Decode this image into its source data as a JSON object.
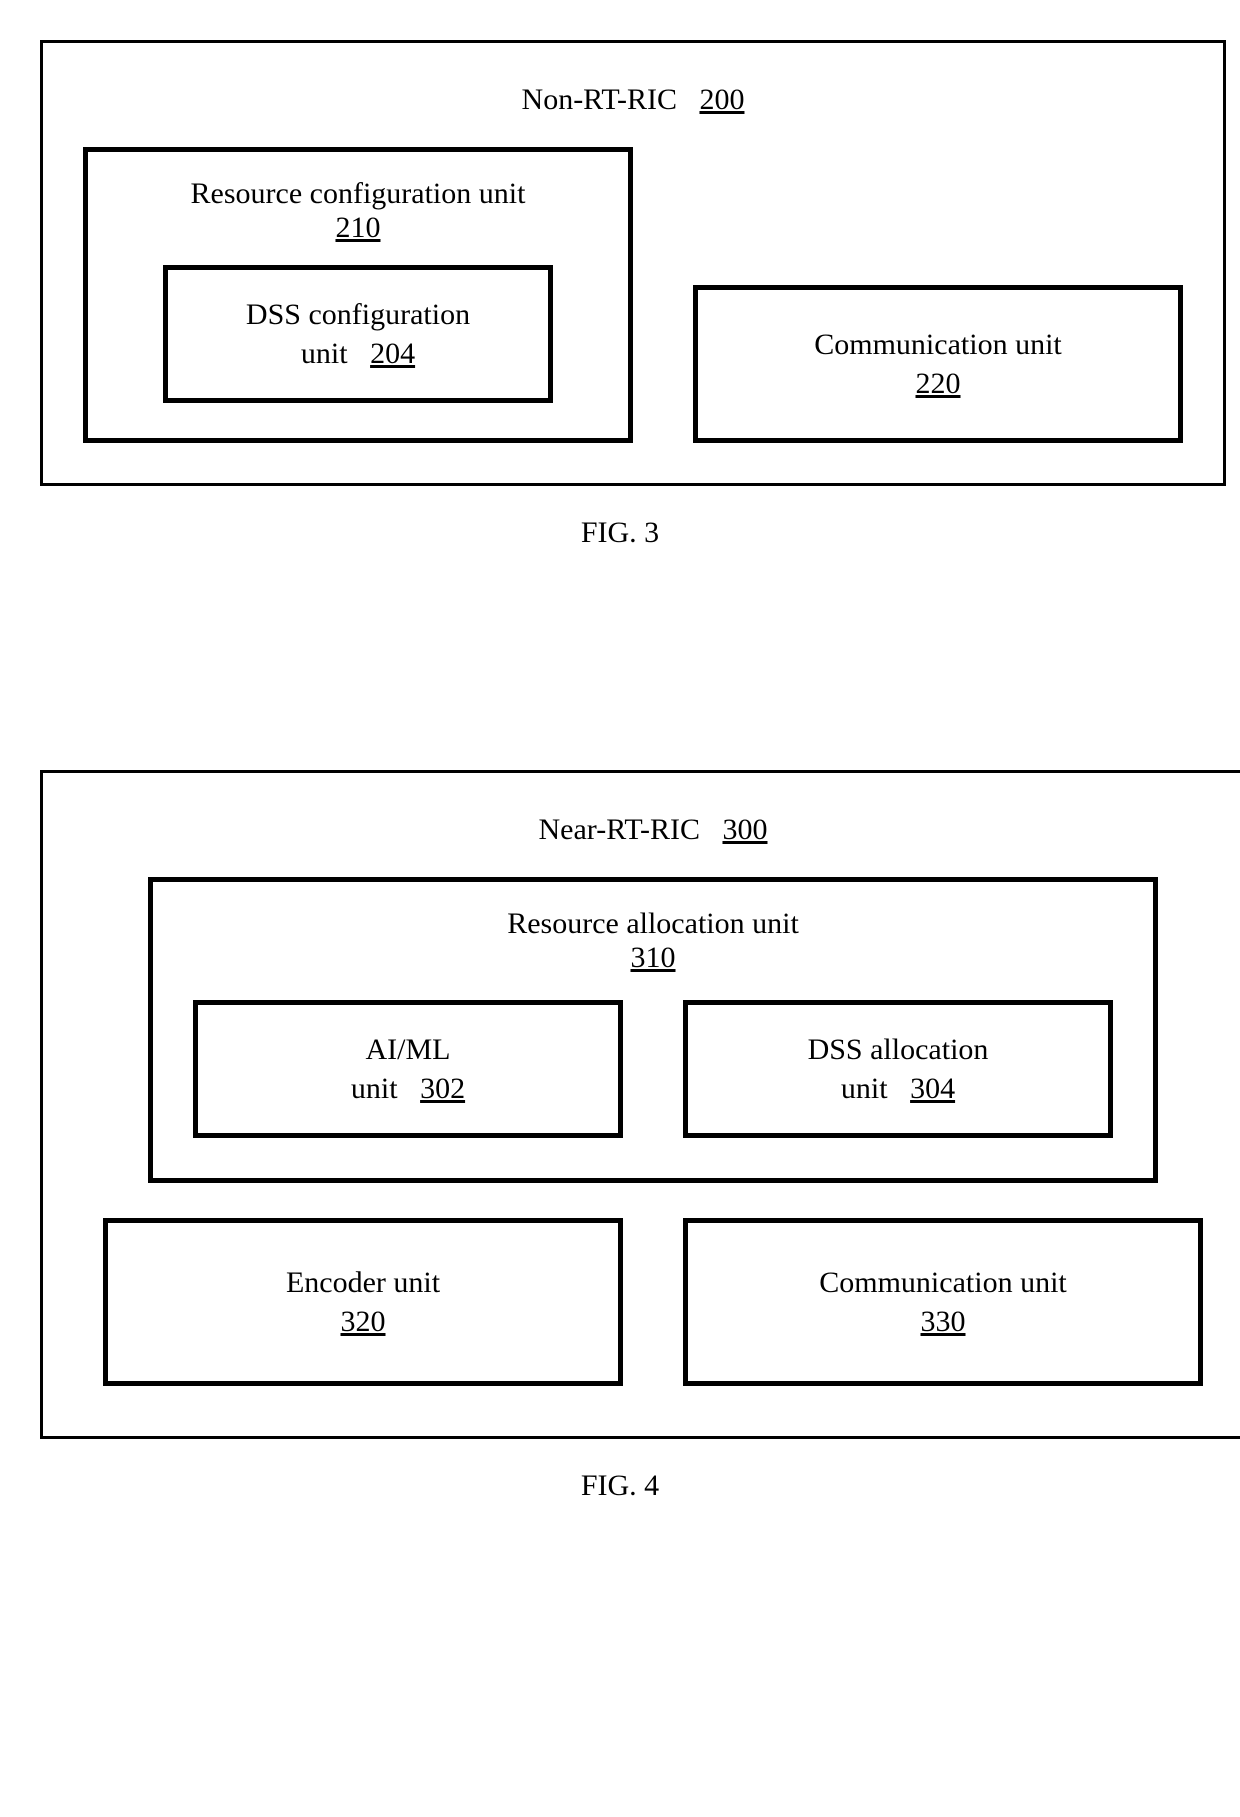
{
  "figure3": {
    "caption": "FIG. 3",
    "outer": {
      "title": "Non-RT-RIC",
      "ref": "200"
    },
    "left_box": {
      "title": "Resource configuration unit",
      "ref": "210",
      "inner": {
        "line1": "DSS configuration",
        "line2_prefix": "unit",
        "ref": "204"
      }
    },
    "right_box": {
      "title": "Communication unit",
      "ref": "220"
    }
  },
  "figure4": {
    "caption": "FIG. 4",
    "outer": {
      "title": "Near-RT-RIC",
      "ref": "300"
    },
    "resource_box": {
      "title": "Resource allocation unit",
      "ref": "310",
      "left_inner": {
        "line1": "AI/ML",
        "line2_prefix": "unit",
        "ref": "302"
      },
      "right_inner": {
        "line1": "DSS allocation",
        "line2_prefix": "unit",
        "ref": "304"
      }
    },
    "bottom_left": {
      "title": "Encoder unit",
      "ref": "320"
    },
    "bottom_right": {
      "title": "Communication unit",
      "ref": "330"
    }
  },
  "styling": {
    "font_family": "Times New Roman",
    "border_width_outer": 3,
    "border_width_inner": 5,
    "border_color": "#000000",
    "background_color": "#ffffff",
    "text_color": "#000000",
    "title_fontsize": 30,
    "caption_fontsize": 30
  }
}
